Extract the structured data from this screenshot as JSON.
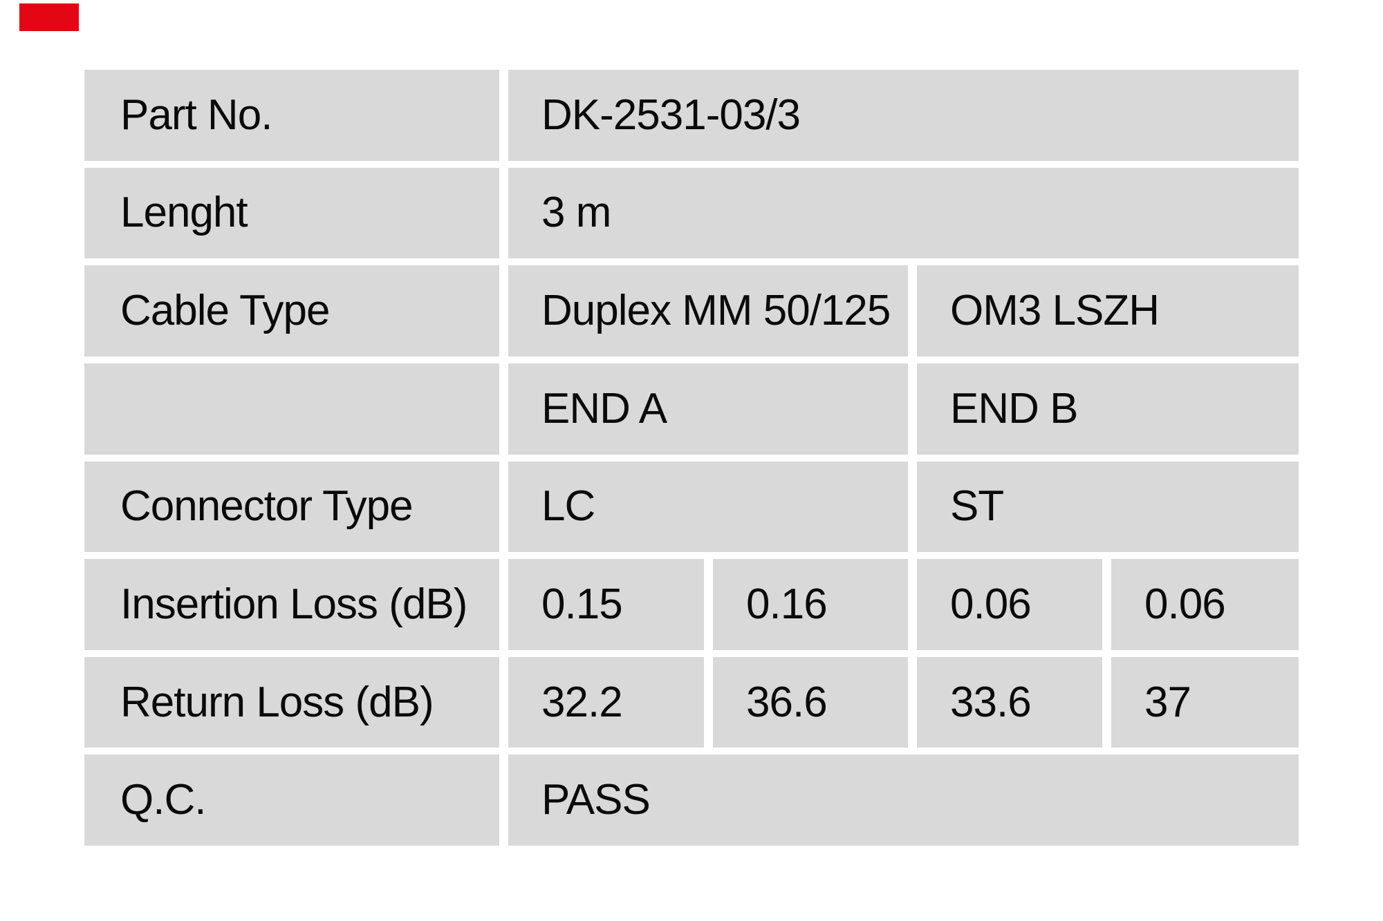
{
  "page": {
    "background": "#ffffff"
  },
  "brand_mark": {
    "color": "#e30613"
  },
  "table": {
    "cell_bg": "#d9d9d9",
    "text_color": "#0a0a0a",
    "rows": [
      {
        "label": "Part No.",
        "values": [
          {
            "text": "DK-2531-03/3",
            "span": 4
          }
        ]
      },
      {
        "label": "Lenght",
        "values": [
          {
            "text": "3 m",
            "span": 4
          }
        ]
      },
      {
        "label": "Cable Type",
        "values": [
          {
            "text": "Duplex MM 50/125",
            "span": 2
          },
          {
            "text": "OM3 LSZH",
            "span": 2
          }
        ]
      },
      {
        "label": "",
        "values": [
          {
            "text": "END A",
            "span": 2
          },
          {
            "text": "END B",
            "span": 2
          }
        ]
      },
      {
        "label": "Connector Type",
        "values": [
          {
            "text": "LC",
            "span": 2
          },
          {
            "text": "ST",
            "span": 2
          }
        ]
      },
      {
        "label": "Insertion Loss (dB)",
        "values": [
          {
            "text": "0.15",
            "span": 1
          },
          {
            "text": "0.16",
            "span": 1
          },
          {
            "text": "0.06",
            "span": 1
          },
          {
            "text": "0.06",
            "span": 1
          }
        ]
      },
      {
        "label": "Return Loss (dB)",
        "values": [
          {
            "text": "32.2",
            "span": 1
          },
          {
            "text": "36.6",
            "span": 1
          },
          {
            "text": "33.6",
            "span": 1
          },
          {
            "text": "37",
            "span": 1
          }
        ]
      },
      {
        "label": "Q.C.",
        "values": [
          {
            "text": "PASS",
            "span": 4
          }
        ]
      }
    ]
  }
}
